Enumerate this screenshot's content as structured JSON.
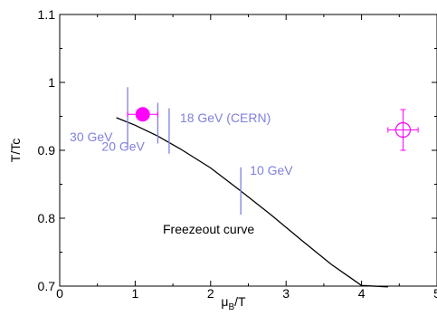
{
  "chart_data": {
    "type": "line",
    "xlabel": "μB/T",
    "xlabel_main": "μ",
    "xlabel_sub": "B",
    "xlabel_tail": "/T",
    "ylabel": "T/Tc",
    "xlim": [
      0,
      5
    ],
    "ylim": [
      0.7,
      1.1
    ],
    "x_ticks": [
      "0",
      "1",
      "2",
      "3",
      "4",
      "5"
    ],
    "y_ticks": [
      "0.7",
      "0.8",
      "0.9",
      "1",
      "1.1"
    ],
    "grid": false,
    "colors": {
      "curve": "#000000",
      "energy_lines": "#8080e0",
      "points": "#ff00ff"
    },
    "curve": {
      "name": "Freezeout curve",
      "x": [
        0.75,
        1.0,
        1.3,
        1.6,
        2.0,
        2.4,
        2.8,
        3.2,
        3.6,
        4.0,
        4.35
      ],
      "y": [
        0.948,
        0.937,
        0.921,
        0.902,
        0.874,
        0.84,
        0.805,
        0.768,
        0.732,
        0.701,
        0.699
      ]
    },
    "energy_lines": [
      {
        "label": "30 GeV",
        "x": 0.9,
        "y_min": 0.905,
        "y_max": 0.993
      },
      {
        "label": "20 GeV",
        "x": 1.3,
        "y_min": 0.91,
        "y_max": 0.97
      },
      {
        "label": "18 GeV (CERN)",
        "x": 1.45,
        "y_min": 0.895,
        "y_max": 0.962
      },
      {
        "label": "10 GeV",
        "x": 2.4,
        "y_min": 0.805,
        "y_max": 0.875
      }
    ],
    "points": [
      {
        "x": 1.1,
        "y": 0.953,
        "x_err": 0.2,
        "y_err": 0.0,
        "marker": "filled-circle"
      },
      {
        "x": 4.55,
        "y": 0.93,
        "x_err": 0.2,
        "y_err": 0.03,
        "marker": "open-circle-cross"
      }
    ],
    "annotation": "Freezeout curve"
  }
}
